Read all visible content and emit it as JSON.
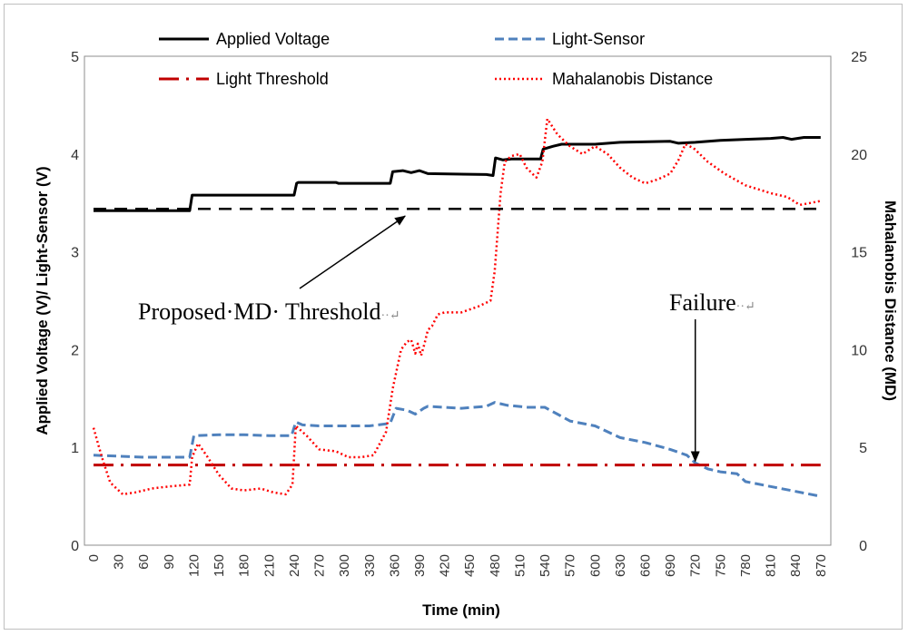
{
  "chart_data": {
    "type": "line",
    "title": "",
    "xlabel": "Time (min)",
    "ylabel_left": "Applied Voltage (V)/ Light-Sensor (V)",
    "ylabel_right": "Mahalanobis Distance (MD)",
    "xlim": [
      0,
      880
    ],
    "ylim_left": [
      0,
      5
    ],
    "ylim_right": [
      0,
      25
    ],
    "x_ticks": [
      0,
      30,
      60,
      90,
      120,
      150,
      180,
      210,
      240,
      270,
      300,
      330,
      360,
      390,
      420,
      450,
      480,
      510,
      540,
      570,
      600,
      630,
      660,
      690,
      720,
      750,
      780,
      810,
      840,
      870
    ],
    "y_ticks_left": [
      0,
      1,
      2,
      3,
      4,
      5
    ],
    "y_ticks_right": [
      0,
      5,
      10,
      15,
      20,
      25
    ],
    "series": [
      {
        "name": "Applied Voltage",
        "axis": "left",
        "color": "#000000",
        "style": "solid",
        "points": [
          [
            0,
            3.42
          ],
          [
            115,
            3.42
          ],
          [
            118,
            3.58
          ],
          [
            240,
            3.58
          ],
          [
            243,
            3.7
          ],
          [
            245,
            3.71
          ],
          [
            290,
            3.71
          ],
          [
            293,
            3.7
          ],
          [
            355,
            3.7
          ],
          [
            358,
            3.82
          ],
          [
            370,
            3.83
          ],
          [
            380,
            3.81
          ],
          [
            390,
            3.83
          ],
          [
            400,
            3.8
          ],
          [
            470,
            3.79
          ],
          [
            478,
            3.78
          ],
          [
            481,
            3.96
          ],
          [
            490,
            3.94
          ],
          [
            500,
            3.95
          ],
          [
            535,
            3.95
          ],
          [
            538,
            4.05
          ],
          [
            550,
            4.08
          ],
          [
            560,
            4.1
          ],
          [
            600,
            4.1
          ],
          [
            630,
            4.12
          ],
          [
            690,
            4.13
          ],
          [
            700,
            4.11
          ],
          [
            720,
            4.12
          ],
          [
            750,
            4.14
          ],
          [
            780,
            4.15
          ],
          [
            810,
            4.16
          ],
          [
            825,
            4.17
          ],
          [
            835,
            4.15
          ],
          [
            850,
            4.17
          ],
          [
            870,
            4.17
          ]
        ]
      },
      {
        "name": "Light-Sensor",
        "axis": "left",
        "color": "#4f81bd",
        "style": "dashed",
        "points": [
          [
            0,
            0.92
          ],
          [
            30,
            0.91
          ],
          [
            60,
            0.9
          ],
          [
            90,
            0.9
          ],
          [
            115,
            0.9
          ],
          [
            120,
            1.12
          ],
          [
            150,
            1.13
          ],
          [
            180,
            1.13
          ],
          [
            210,
            1.12
          ],
          [
            237,
            1.12
          ],
          [
            242,
            1.26
          ],
          [
            250,
            1.23
          ],
          [
            270,
            1.22
          ],
          [
            300,
            1.22
          ],
          [
            330,
            1.22
          ],
          [
            350,
            1.24
          ],
          [
            355,
            1.25
          ],
          [
            362,
            1.4
          ],
          [
            375,
            1.38
          ],
          [
            385,
            1.34
          ],
          [
            395,
            1.4
          ],
          [
            400,
            1.42
          ],
          [
            420,
            1.41
          ],
          [
            440,
            1.4
          ],
          [
            470,
            1.42
          ],
          [
            480,
            1.46
          ],
          [
            495,
            1.43
          ],
          [
            520,
            1.41
          ],
          [
            540,
            1.41
          ],
          [
            555,
            1.34
          ],
          [
            570,
            1.27
          ],
          [
            600,
            1.22
          ],
          [
            630,
            1.1
          ],
          [
            660,
            1.05
          ],
          [
            690,
            0.98
          ],
          [
            710,
            0.92
          ],
          [
            720,
            0.84
          ],
          [
            735,
            0.78
          ],
          [
            750,
            0.75
          ],
          [
            770,
            0.73
          ],
          [
            780,
            0.65
          ],
          [
            810,
            0.6
          ],
          [
            840,
            0.55
          ],
          [
            870,
            0.5
          ]
        ]
      },
      {
        "name": "Light Threshold",
        "axis": "left",
        "color": "#c00000",
        "style": "dash-dot",
        "points": [
          [
            0,
            0.82
          ],
          [
            870,
            0.82
          ]
        ]
      },
      {
        "name": "Mahalanobis Distance",
        "axis": "right",
        "color": "#ff0000",
        "style": "dotted",
        "points": [
          [
            0,
            6.0
          ],
          [
            10,
            4.5
          ],
          [
            20,
            3.2
          ],
          [
            35,
            2.6
          ],
          [
            50,
            2.7
          ],
          [
            70,
            2.9
          ],
          [
            90,
            3.0
          ],
          [
            115,
            3.1
          ],
          [
            118,
            4.5
          ],
          [
            125,
            5.2
          ],
          [
            135,
            4.6
          ],
          [
            150,
            3.6
          ],
          [
            165,
            2.9
          ],
          [
            180,
            2.8
          ],
          [
            200,
            2.9
          ],
          [
            215,
            2.7
          ],
          [
            230,
            2.6
          ],
          [
            238,
            3.1
          ],
          [
            242,
            6.1
          ],
          [
            255,
            5.6
          ],
          [
            270,
            4.9
          ],
          [
            290,
            4.8
          ],
          [
            305,
            4.5
          ],
          [
            320,
            4.5
          ],
          [
            335,
            4.6
          ],
          [
            350,
            5.8
          ],
          [
            358,
            8.0
          ],
          [
            368,
            10.0
          ],
          [
            375,
            10.4
          ],
          [
            380,
            10.5
          ],
          [
            385,
            9.8
          ],
          [
            388,
            10.3
          ],
          [
            392,
            9.7
          ],
          [
            396,
            10.3
          ],
          [
            400,
            11.0
          ],
          [
            405,
            11.2
          ],
          [
            412,
            11.8
          ],
          [
            420,
            11.9
          ],
          [
            440,
            11.9
          ],
          [
            460,
            12.2
          ],
          [
            475,
            12.5
          ],
          [
            480,
            14.0
          ],
          [
            487,
            18.0
          ],
          [
            492,
            19.6
          ],
          [
            500,
            19.9
          ],
          [
            510,
            20.0
          ],
          [
            518,
            19.3
          ],
          [
            525,
            19.0
          ],
          [
            530,
            18.8
          ],
          [
            537,
            19.6
          ],
          [
            543,
            21.8
          ],
          [
            555,
            21.0
          ],
          [
            570,
            20.4
          ],
          [
            585,
            20.0
          ],
          [
            600,
            20.4
          ],
          [
            615,
            20.0
          ],
          [
            630,
            19.3
          ],
          [
            645,
            18.8
          ],
          [
            660,
            18.5
          ],
          [
            675,
            18.7
          ],
          [
            690,
            19.0
          ],
          [
            700,
            19.7
          ],
          [
            708,
            20.5
          ],
          [
            718,
            20.3
          ],
          [
            735,
            19.6
          ],
          [
            755,
            19.0
          ],
          [
            780,
            18.4
          ],
          [
            810,
            18.0
          ],
          [
            830,
            17.8
          ],
          [
            845,
            17.4
          ],
          [
            858,
            17.5
          ],
          [
            870,
            17.6
          ]
        ]
      },
      {
        "name": "Proposed MD Threshold",
        "axis": "right",
        "color": "#000000",
        "style": "long-dash",
        "points": [
          [
            0,
            17.2
          ],
          [
            870,
            17.2
          ]
        ]
      }
    ],
    "legend": [
      {
        "label": "Applied Voltage",
        "style": "solid",
        "color": "#000000"
      },
      {
        "label": "Light-Sensor",
        "style": "dashed",
        "color": "#4f81bd"
      },
      {
        "label": "Light Threshold",
        "style": "dash-dot",
        "color": "#c00000"
      },
      {
        "label": "Mahalanobis Distance",
        "style": "dotted",
        "color": "#ff0000"
      }
    ],
    "legend_position": "top",
    "annotations": [
      {
        "text": "Proposed·MD· Threshold",
        "mark": "··↵",
        "arrow_to": {
          "x": 375,
          "axis": "right",
          "y": 17.2
        }
      },
      {
        "text": "Failure",
        "mark": "··↵",
        "arrow_to": {
          "x": 720,
          "axis": "left",
          "y": 0.84
        }
      }
    ],
    "grid": false
  }
}
